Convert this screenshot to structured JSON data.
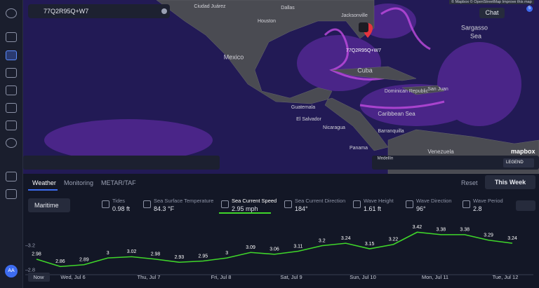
{
  "search": {
    "query": "77Q2R95Q+W7"
  },
  "attribution": "© Mapbox © OpenStreetMap Improve this map",
  "header": {
    "chat": "Chat",
    "notifications": "5"
  },
  "map": {
    "labels": [
      "Ciudad Juárez",
      "Dallas",
      "Houston",
      "Jacksonville",
      "Mexico",
      "Cuba",
      "Guatemala",
      "El Salvador",
      "Nicaragua",
      "Panama",
      "Barranquilla",
      "Venezuela",
      "Medellín",
      "Sargasso",
      "Sea",
      "Caribbean Sea",
      "Dominican Republic",
      "San Juan"
    ],
    "marker": "77Q2R95Q+W7",
    "logo": "mapbox",
    "legend": "LEGEND"
  },
  "tabs": [
    "Weather",
    "Monitoring",
    "METAR/TAF"
  ],
  "reset": "Reset",
  "range": "This Week",
  "mode": "Maritime",
  "metrics": [
    {
      "name": "Tides",
      "value": "0.98 ft"
    },
    {
      "name": "Sea Surface Temperature",
      "value": "84.3 °F"
    },
    {
      "name": "Sea Current Speed",
      "value": "2.95 mph"
    },
    {
      "name": "Sea Current Direction",
      "value": "184°"
    },
    {
      "name": "Wave Height",
      "value": "1.61 ft"
    },
    {
      "name": "Wave Direction",
      "value": "96°"
    },
    {
      "name": "Wave Period",
      "value": "2.8"
    }
  ],
  "chart_data": {
    "type": "line",
    "color": "#3fd62a",
    "values": [
      2.98,
      2.86,
      2.89,
      3,
      3.02,
      2.98,
      2.93,
      2.95,
      3,
      3.09,
      3.06,
      3.11,
      3.2,
      3.24,
      3.15,
      3.22,
      3.42,
      3.38,
      3.38,
      3.29,
      3.24
    ],
    "x_labels": [
      "Now",
      "Wed, Jul 6",
      "Thu, Jul 7",
      "Fri, Jul 8",
      "Sat, Jul 9",
      "Sun, Jul 10",
      "Mon, Jul 11",
      "Tue, Jul 12"
    ],
    "ylim": [
      2.75,
      3.55
    ],
    "yticks": [
      2.8,
      3.2
    ]
  },
  "user": {
    "initials": "AA"
  }
}
